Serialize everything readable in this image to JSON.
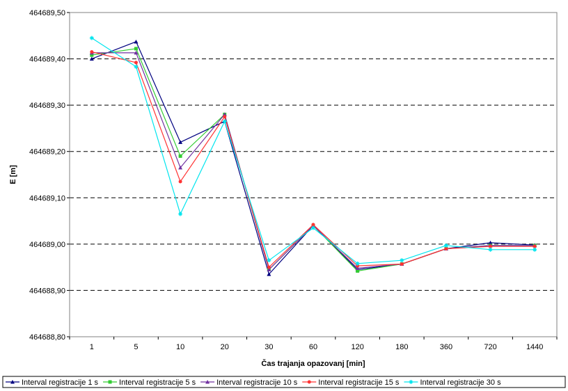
{
  "chart_data": {
    "type": "line",
    "title": "",
    "xlabel": "Čas trajanja opazovanj [min]",
    "ylabel": "E [m]",
    "categories": [
      "1",
      "5",
      "10",
      "20",
      "30",
      "60",
      "120",
      "180",
      "360",
      "720",
      "1440"
    ],
    "ylim": [
      464688.8,
      464689.5
    ],
    "yticks": [
      "464688,80",
      "464688,90",
      "464689,00",
      "464689,10",
      "464689,20",
      "464689,30",
      "464689,40",
      "464689,50"
    ],
    "grid": "horizontal dashed",
    "legend_position": "bottom",
    "series": [
      {
        "name": "Interval registracije 1 s",
        "color": "#000080",
        "marker": "triangle",
        "values": [
          464689.4,
          464689.437,
          464689.22,
          464689.265,
          464688.935,
          464689.04,
          464688.945,
          464688.957,
          464688.99,
          464689.003,
          464688.998
        ]
      },
      {
        "name": "Interval registracije 5 s",
        "color": "#33cc33",
        "marker": "square",
        "values": [
          464689.408,
          464689.422,
          464689.19,
          464689.28,
          464688.945,
          464689.04,
          464688.942,
          464688.957,
          464688.99,
          464688.997,
          464688.997
        ]
      },
      {
        "name": "Interval registracije 10 s",
        "color": "#7030a0",
        "marker": "triangle",
        "values": [
          464689.413,
          464689.413,
          464689.165,
          464689.28,
          464688.945,
          464689.04,
          464688.948,
          464688.957,
          464688.99,
          464688.997,
          464688.997
        ]
      },
      {
        "name": "Interval registracije 15 s",
        "color": "#ff3333",
        "marker": "circle",
        "values": [
          464689.415,
          464689.392,
          464689.135,
          464689.275,
          464688.95,
          464689.042,
          464688.953,
          464688.957,
          464688.99,
          464688.995,
          464688.995
        ]
      },
      {
        "name": "Interval registracije 30 s",
        "color": "#00e5ee",
        "marker": "star",
        "values": [
          464689.445,
          464689.383,
          464689.065,
          464689.265,
          464688.965,
          464689.035,
          464688.958,
          464688.965,
          464688.997,
          464688.988,
          464688.988
        ]
      }
    ]
  }
}
